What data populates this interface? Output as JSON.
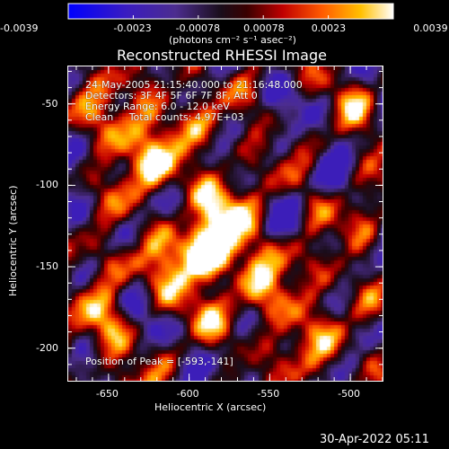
{
  "colorbar": {
    "tick_labels": [
      "-0.0039",
      "-0.0023",
      "-0.00078",
      "0.00078",
      "0.0023",
      "0.0039"
    ],
    "units_label": "(photons cm⁻² s⁻¹ asec⁻²)"
  },
  "chart_data": {
    "type": "heatmap",
    "title": "Reconstructed RHESSI Image",
    "xlabel": "Heliocentric X (arcsec)",
    "ylabel": "Heliocentric Y (arcsec)",
    "xlim": [
      -675,
      -480
    ],
    "ylim": [
      -220,
      -27
    ],
    "x_ticks": [
      -650,
      -600,
      -550,
      -500
    ],
    "y_ticks": [
      -50,
      -100,
      -150,
      -200
    ],
    "x_tick_labels": [
      "-650",
      "-600",
      "-550",
      "-500"
    ],
    "y_tick_labels": [
      "-50",
      "-100",
      "-150",
      "-200"
    ],
    "color_range": [
      -0.0039,
      0.0039
    ],
    "peak": {
      "x": -593,
      "y": -141
    },
    "annotations": {
      "time_range": "24-May-2005 21:15:40.000 to 21:16:48.000",
      "detectors": "Detectors: 3F 4F 5F 6F 7F 8F, Att 0",
      "energy": "Energy Range: 6.0 - 12.0 keV",
      "clean": "Clean     Total counts: 4.97E+03",
      "peak_label": "Position of Peak = [-593,-141]"
    },
    "grid": false
  },
  "footer": {
    "timestamp": "30-Apr-2022 05:11"
  }
}
